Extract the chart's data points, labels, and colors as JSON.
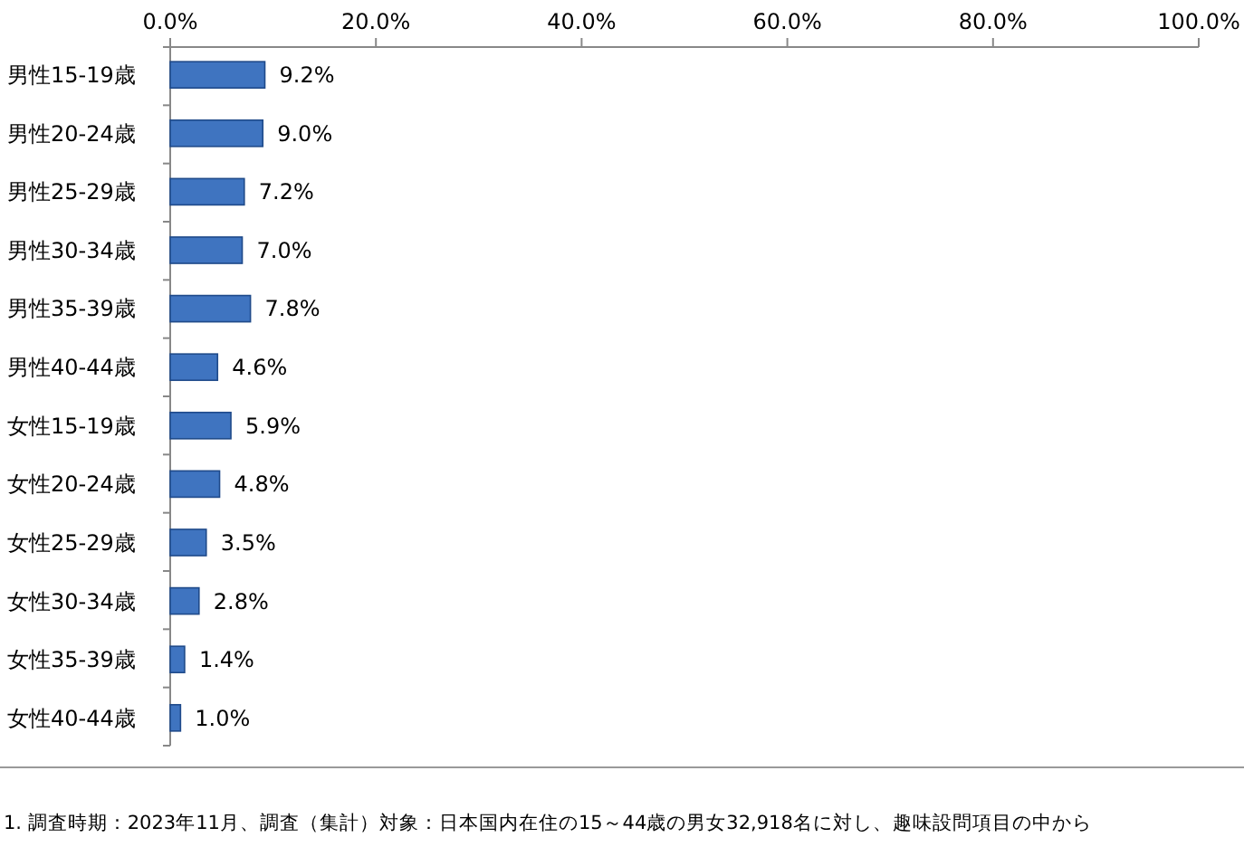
{
  "chart_data": {
    "type": "bar",
    "orientation": "horizontal",
    "categories": [
      "男性15-19歳",
      "男性20-24歳",
      "男性25-29歳",
      "男性30-34歳",
      "男性35-39歳",
      "男性40-44歳",
      "女性15-19歳",
      "女性20-24歳",
      "女性25-29歳",
      "女性30-34歳",
      "女性35-39歳",
      "女性40-44歳"
    ],
    "values": [
      9.2,
      9.0,
      7.2,
      7.0,
      7.8,
      4.6,
      5.9,
      4.8,
      3.5,
      2.8,
      1.4,
      1.0
    ],
    "value_labels": [
      "9.2%",
      "9.0%",
      "7.2%",
      "7.0%",
      "7.8%",
      "4.6%",
      "5.9%",
      "4.8%",
      "3.5%",
      "2.8%",
      "1.4%",
      "1.0%"
    ],
    "color": "#3f74c0",
    "xlim": [
      0,
      100
    ],
    "xticks": [
      {
        "value": 0,
        "label": "0.0%"
      },
      {
        "value": 20,
        "label": "20.0%"
      },
      {
        "value": 40,
        "label": "40.0%"
      },
      {
        "value": 60,
        "label": "60.0%"
      },
      {
        "value": 80,
        "label": "80.0%"
      },
      {
        "value": 100,
        "label": "100.0%"
      }
    ],
    "annotations": [
      "1. 調査時期：2023年11月、調査（集計）対象：日本国内在住の15～44歳の男女32,918名に対し、趣味設問項目の中から"
    ]
  }
}
